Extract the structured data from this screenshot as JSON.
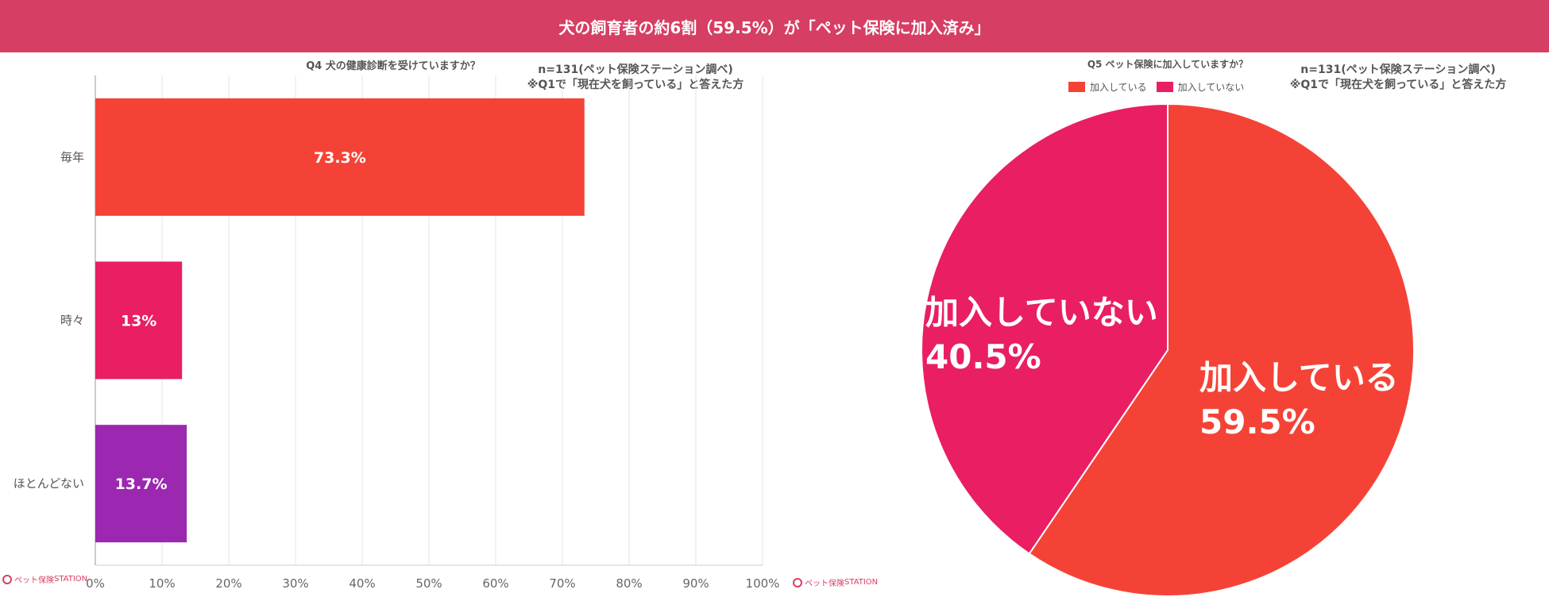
{
  "banner": {
    "title": "犬の飼育者の約6割（59.5%）が「ペット保険に加入済み」"
  },
  "colors": {
    "banner": "#d63e63",
    "red": "#f44336",
    "pink": "#e91e63",
    "purple": "#9c27b0"
  },
  "left": {
    "note_line1": "n=131(ペット保険ステーション調べ)",
    "note_line2": "※Q1で「現在犬を飼っている」と答えた方"
  },
  "right": {
    "note_line1": "n=131(ペット保険ステーション調べ)",
    "note_line2": "※Q1で「現在犬を飼っている」と答えた方"
  },
  "logos": {
    "brand": "ペット保険",
    "brand_suffix": "STATION"
  },
  "chart_data": [
    {
      "type": "bar",
      "orientation": "horizontal",
      "title": "Q4 犬の健康診断を受けていますか？",
      "categories": [
        "毎年",
        "時々",
        "ほとんどない"
      ],
      "values": [
        73.3,
        13,
        13.7
      ],
      "data_labels": [
        "73.3%",
        "13%",
        "13.7%"
      ],
      "colors": [
        "#f44336",
        "#e91e63",
        "#9c27b0"
      ],
      "xlim": [
        0,
        100
      ],
      "x_ticks": [
        "0%",
        "10%",
        "20%",
        "30%",
        "40%",
        "50%",
        "60%",
        "70%",
        "80%",
        "90%",
        "100%"
      ],
      "grid": true
    },
    {
      "type": "pie",
      "title": "Q5 ペット保険に加入していますか？",
      "categories": [
        "加入している",
        "加入していない"
      ],
      "values": [
        59.5,
        40.5
      ],
      "data_labels": [
        "59.5%",
        "40.5%"
      ],
      "colors": [
        "#f44336",
        "#e91e63"
      ],
      "legend": "top"
    }
  ]
}
